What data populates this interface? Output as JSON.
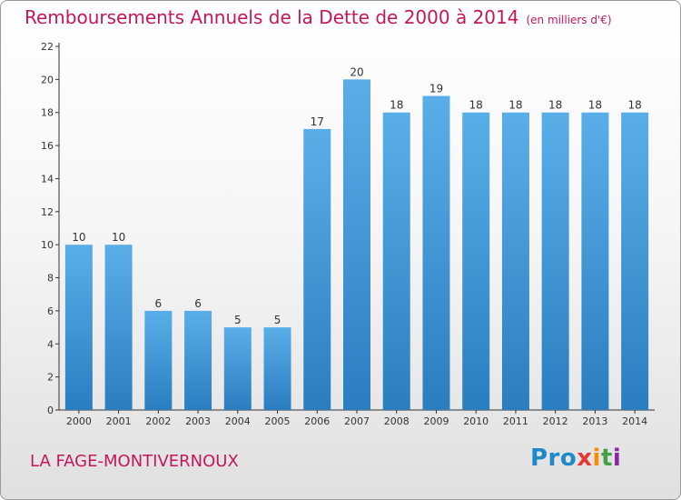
{
  "title": "Remboursements Annuels de la Dette de 2000 à 2014",
  "unit": "(en milliers d'€)",
  "commune": "LA FAGE-MONTIVERNOUX",
  "logo": {
    "p1": "Pro",
    "p2": "x",
    "p3": "i",
    "p4": "t",
    "p5": "i"
  },
  "colors": {
    "title": "#c2185b",
    "bar_top": "#5aaee8",
    "bar_bottom": "#2a7ec0",
    "axis": "#333333"
  },
  "chart_data": {
    "type": "bar",
    "categories": [
      "2000",
      "2001",
      "2002",
      "2003",
      "2004",
      "2005",
      "2006",
      "2007",
      "2008",
      "2009",
      "2010",
      "2011",
      "2012",
      "2013",
      "2014"
    ],
    "values": [
      10,
      10,
      6,
      6,
      5,
      5,
      17,
      20,
      18,
      19,
      18,
      18,
      18,
      18,
      18
    ],
    "ylim": [
      0,
      22
    ],
    "yticks": [
      0,
      2,
      4,
      6,
      8,
      10,
      12,
      14,
      16,
      18,
      20,
      22
    ],
    "grid": false,
    "data_labels": true
  }
}
